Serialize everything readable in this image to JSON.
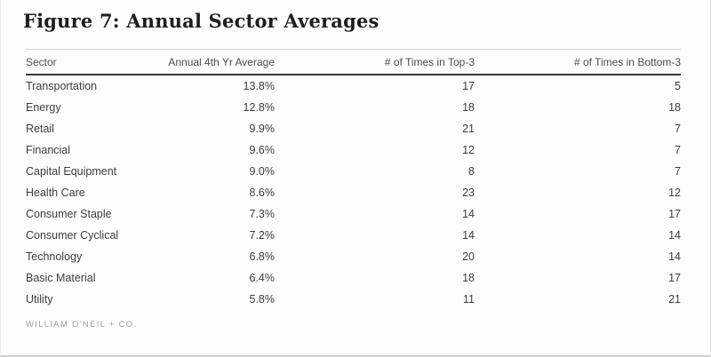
{
  "figure": {
    "title": "Figure 7: Annual Sector Averages"
  },
  "table": {
    "columns": [
      "Sector",
      "Annual 4th Yr Average",
      "# of Times in Top-3",
      "# of Times in Bottom-3"
    ],
    "rows": [
      {
        "sector": "Transportation",
        "annual_4th_yr_average": "13.8%",
        "times_in_top_3": "17",
        "times_in_bottom_3": "5"
      },
      {
        "sector": "Energy",
        "annual_4th_yr_average": "12.8%",
        "times_in_top_3": "18",
        "times_in_bottom_3": "18"
      },
      {
        "sector": "Retail",
        "annual_4th_yr_average": "9.9%",
        "times_in_top_3": "21",
        "times_in_bottom_3": "7"
      },
      {
        "sector": "Financial",
        "annual_4th_yr_average": "9.6%",
        "times_in_top_3": "12",
        "times_in_bottom_3": "7"
      },
      {
        "sector": "Capital Equipment",
        "annual_4th_yr_average": "9.0%",
        "times_in_top_3": "8",
        "times_in_bottom_3": "7"
      },
      {
        "sector": "Health Care",
        "annual_4th_yr_average": "8.6%",
        "times_in_top_3": "23",
        "times_in_bottom_3": "12"
      },
      {
        "sector": "Consumer Staple",
        "annual_4th_yr_average": "7.3%",
        "times_in_top_3": "14",
        "times_in_bottom_3": "17"
      },
      {
        "sector": "Consumer Cyclical",
        "annual_4th_yr_average": "7.2%",
        "times_in_top_3": "14",
        "times_in_bottom_3": "14"
      },
      {
        "sector": "Technology",
        "annual_4th_yr_average": "6.8%",
        "times_in_top_3": "20",
        "times_in_bottom_3": "14"
      },
      {
        "sector": "Basic Material",
        "annual_4th_yr_average": "6.4%",
        "times_in_top_3": "18",
        "times_in_bottom_3": "17"
      },
      {
        "sector": "Utility",
        "annual_4th_yr_average": "5.8%",
        "times_in_top_3": "11",
        "times_in_bottom_3": "21"
      }
    ]
  },
  "footer": {
    "source": "WILLIAM O'NEIL + CO."
  },
  "colors": {
    "title_text": "#1e1e1e",
    "header_text": "#4c4c4c",
    "cell_text": "#3d3d3d",
    "heavy_rule": "#3a3a3a",
    "light_rule": "#d9d9d9",
    "source_text": "#9e9e9e",
    "background": "#fdfdfd"
  }
}
